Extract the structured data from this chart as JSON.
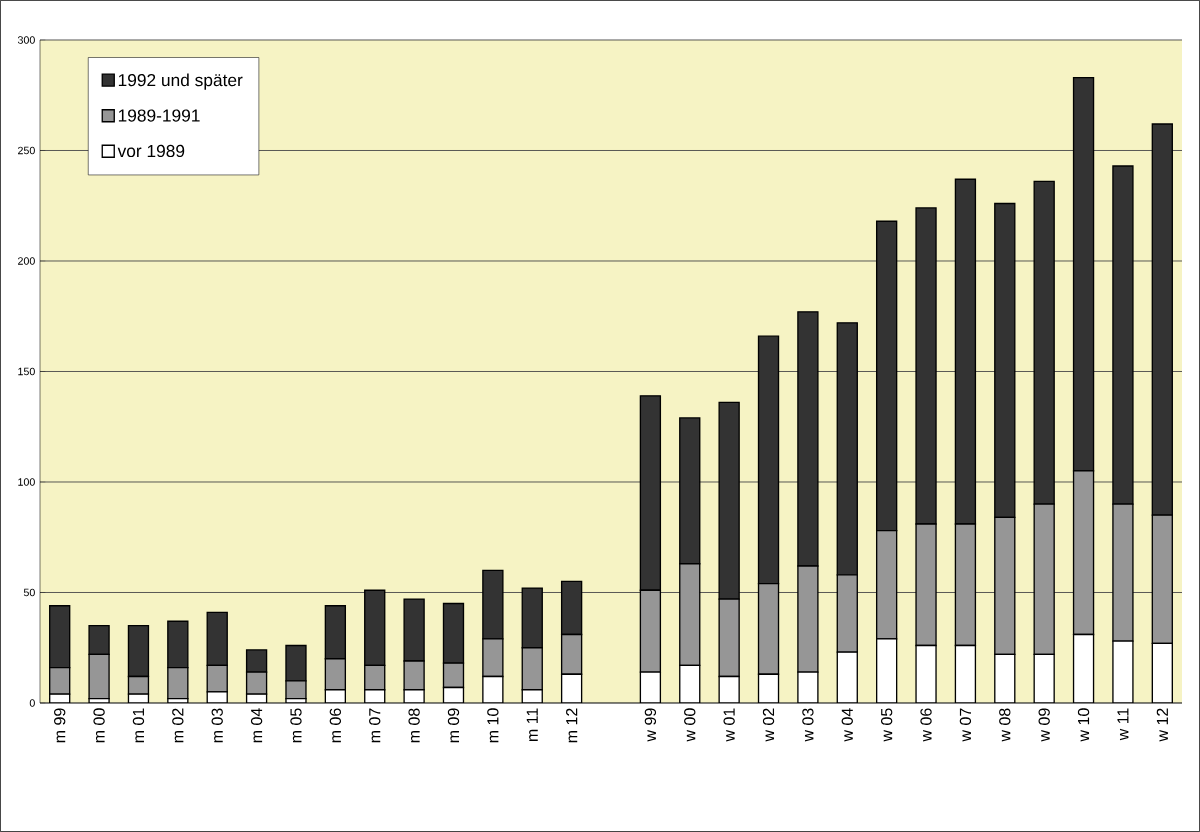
{
  "chart_data": {
    "type": "bar",
    "stacked": true,
    "categories": [
      "m 99",
      "m 00",
      "m 01",
      "m 02",
      "m 03",
      "m 04",
      "m 05",
      "m 06",
      "m 07",
      "m 08",
      "m 09",
      "m 10",
      "m 11",
      "m 12",
      null,
      "w 99",
      "w 00",
      "w 01",
      "w 02",
      "w 03",
      "w 04",
      "w 05",
      "w 06",
      "w 07",
      "w 08",
      "w 09",
      "w 10",
      "w 11",
      "w 12"
    ],
    "series": [
      {
        "name": "vor 1989",
        "color": "#ffffff",
        "values": [
          4,
          2,
          4,
          2,
          5,
          4,
          2,
          6,
          6,
          6,
          7,
          12,
          6,
          13,
          null,
          14,
          17,
          12,
          13,
          14,
          23,
          29,
          26,
          26,
          22,
          22,
          31,
          28,
          27
        ]
      },
      {
        "name": "1989-1991",
        "color": "#969696",
        "values": [
          12,
          20,
          8,
          14,
          12,
          10,
          8,
          14,
          11,
          13,
          11,
          17,
          19,
          18,
          null,
          37,
          46,
          35,
          41,
          48,
          35,
          49,
          55,
          55,
          62,
          68,
          74,
          62,
          58
        ]
      },
      {
        "name": "1992 und später",
        "color": "#333333",
        "values": [
          28,
          13,
          23,
          21,
          24,
          10,
          16,
          24,
          34,
          28,
          27,
          31,
          27,
          24,
          null,
          88,
          66,
          89,
          112,
          115,
          114,
          140,
          143,
          156,
          142,
          146,
          178,
          153,
          177
        ]
      }
    ],
    "ylim": [
      0,
      300
    ],
    "yticks": [
      0,
      50,
      100,
      150,
      200,
      250,
      300
    ],
    "grid": "y",
    "legend": "top left"
  }
}
